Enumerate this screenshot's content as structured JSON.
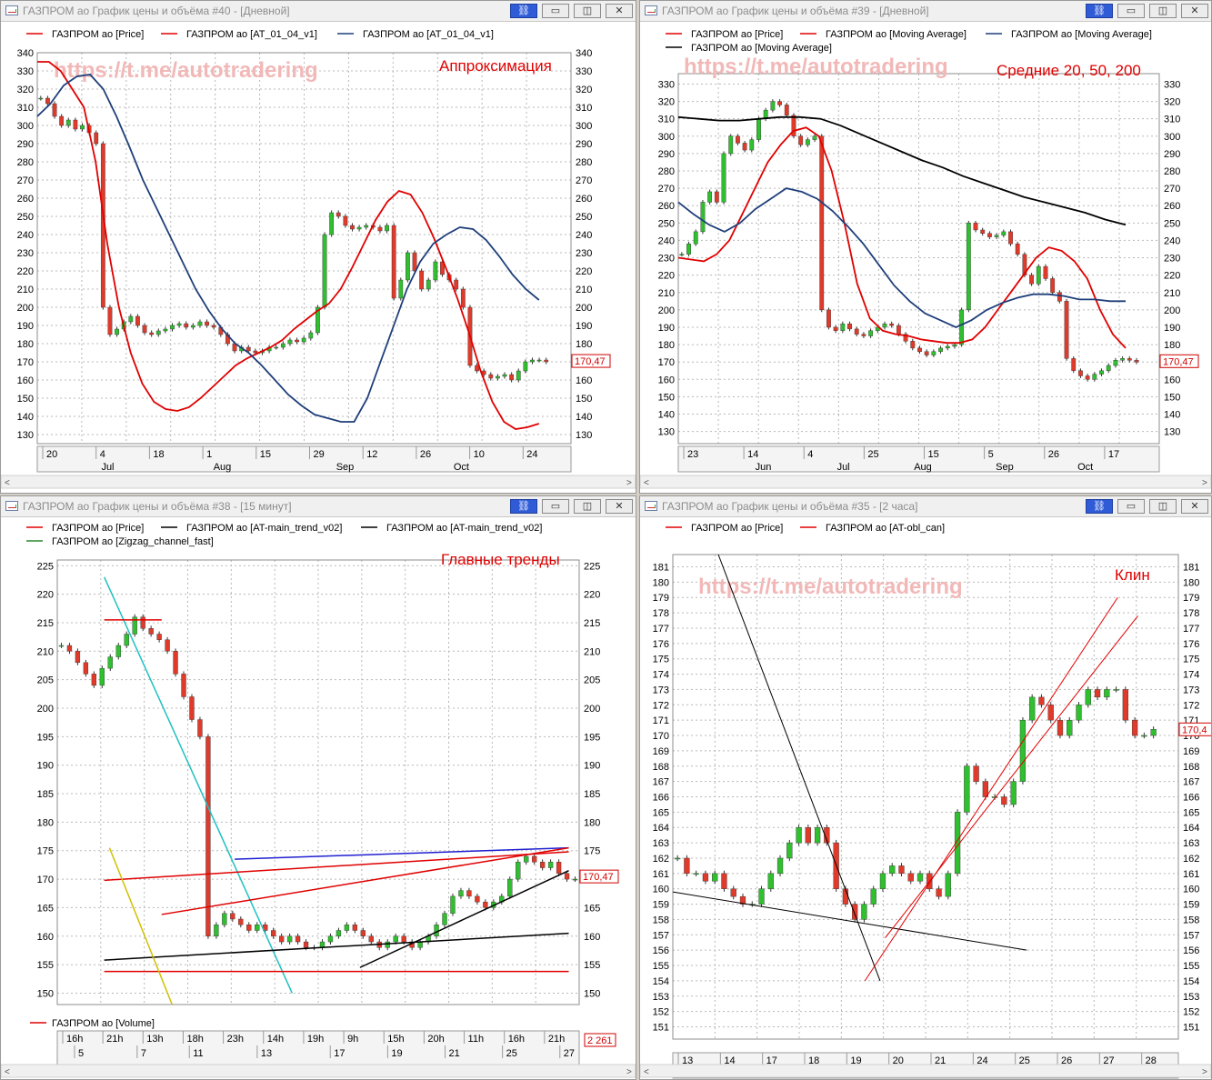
{
  "watermark": "https://t.me/autotradering",
  "charts": [
    {
      "id": "w40",
      "title": "ГАЗПРОМ ао График цены и объёма #40 - [Дневной]",
      "annotation": "Аппроксимация",
      "price_label": "170,47",
      "legend": [
        {
          "label": "ГАЗПРОМ ао [Price]",
          "color": "#e00000"
        },
        {
          "label": "ГАЗПРОМ ао [AT_01_04_v1]",
          "color": "#e00000"
        },
        {
          "label": "ГАЗПРОМ ао [AT_01_04_v1]",
          "color": "#1f3f7a"
        }
      ],
      "x_labels": [
        "20",
        "4",
        "18",
        "1",
        "15",
        "29",
        "12",
        "26",
        "10",
        "24"
      ],
      "month_labels": [
        "Jul",
        "Aug",
        "Sep",
        "Oct"
      ],
      "chart_data": {
        "type": "line",
        "ylim": [
          125,
          340
        ],
        "y_ticks": [
          130,
          140,
          150,
          160,
          170,
          180,
          190,
          200,
          210,
          220,
          230,
          240,
          250,
          260,
          270,
          280,
          290,
          300,
          310,
          320,
          330,
          340
        ],
        "x_count": 100,
        "series": [
          {
            "name": "ГАЗПРОМ ао [Price]",
            "kind": "candles",
            "color": "#e00000",
            "values": [
              315,
              312,
              305,
              300,
              303,
              298,
              300,
              296,
              290,
              200,
              185,
              188,
              192,
              195,
              190,
              186,
              185,
              187,
              188,
              190,
              191,
              189,
              190,
              192,
              190,
              189,
              185,
              180,
              176,
              178,
              176,
              175,
              176,
              178,
              178,
              180,
              182,
              181,
              183,
              186,
              200,
              240,
              252,
              250,
              245,
              243,
              244,
              245,
              244,
              242,
              245,
              205,
              215,
              230,
              220,
              210,
              215,
              225,
              218,
              215,
              210,
              200,
              168,
              165,
              163,
              161,
              162,
              163,
              160,
              165,
              170,
              171,
              171,
              170
            ]
          },
          {
            "name": "ГАЗПРОМ ао [AT_01_04_v1]",
            "kind": "line",
            "color": "#e00000",
            "values": [
              335,
              335,
              330,
              320,
              310,
              280,
              235,
              200,
              175,
              158,
              148,
              144,
              143,
              145,
              150,
              156,
              162,
              168,
              172,
              175,
              178,
              182,
              188,
              193,
              198,
              202,
              210,
              222,
              235,
              248,
              258,
              264,
              262,
              252,
              238,
              222,
              205,
              186,
              165,
              148,
              137,
              133,
              134,
              136
            ]
          },
          {
            "name": "ГАЗПРОМ ао [AT_01_04_v1]",
            "kind": "line",
            "color": "#1f3f7a",
            "values": [
              305,
              312,
              322,
              327,
              328,
              320,
              305,
              288,
              270,
              255,
              240,
              225,
              210,
              198,
              188,
              180,
              175,
              168,
              160,
              152,
              146,
              141,
              139,
              137,
              137,
              150,
              170,
              190,
              210,
              225,
              235,
              240,
              244,
              243,
              237,
              228,
              218,
              210,
              204
            ]
          }
        ]
      }
    },
    {
      "id": "w39",
      "title": "ГАЗПРОМ ао График цены и объёма #39 - [Дневной]",
      "annotation": "Средние 20, 50, 200",
      "price_label": "170,47",
      "legend": [
        {
          "label": "ГАЗПРОМ ао [Price]",
          "color": "#e00000"
        },
        {
          "label": "ГАЗПРОМ ао [Moving Average]",
          "color": "#e00000"
        },
        {
          "label": "ГАЗПРОМ ао [Moving Average]",
          "color": "#1f3f7a"
        },
        {
          "label": "ГАЗПРОМ ао [Moving Average]",
          "color": "#000000"
        }
      ],
      "x_labels": [
        "23",
        "14",
        "4",
        "25",
        "15",
        "5",
        "26",
        "17"
      ],
      "month_labels": [
        "Jun",
        "Jul",
        "Aug",
        "Sep",
        "Oct"
      ],
      "chart_data": {
        "type": "line",
        "ylim": [
          123,
          336
        ],
        "y_ticks": [
          130,
          140,
          150,
          160,
          170,
          180,
          190,
          200,
          210,
          220,
          230,
          240,
          250,
          260,
          270,
          280,
          290,
          300,
          310,
          320,
          330
        ],
        "x_count": 100,
        "series": [
          {
            "name": "ГАЗПРОМ ао [Price]",
            "kind": "candles",
            "color": "#e00000",
            "values": [
              232,
              238,
              245,
              262,
              268,
              262,
              290,
              300,
              296,
              292,
              298,
              310,
              315,
              320,
              318,
              312,
              300,
              295,
              298,
              300,
              200,
              190,
              188,
              192,
              189,
              186,
              185,
              188,
              190,
              192,
              191,
              186,
              182,
              178,
              176,
              174,
              176,
              178,
              179,
              180,
              200,
              250,
              246,
              244,
              242,
              243,
              245,
              238,
              232,
              220,
              215,
              225,
              218,
              210,
              205,
              172,
              165,
              162,
              160,
              163,
              165,
              168,
              171,
              172,
              171,
              170
            ]
          },
          {
            "name": "ГАЗПРОМ ао [Moving Average]",
            "kind": "line",
            "color": "#e00000",
            "values": [
              230,
              229,
              228,
              232,
              240,
              255,
              270,
              285,
              295,
              303,
              305,
              300,
              280,
              250,
              215,
              195,
              188,
              186,
              185,
              183,
              182,
              181,
              181,
              183,
              190,
              200,
              210,
              220,
              230,
              236,
              234,
              228,
              218,
              200,
              186,
              178
            ]
          },
          {
            "name": "ГАЗПРОМ ао [Moving Average]",
            "kind": "line",
            "color": "#1f3f7a",
            "values": [
              262,
              255,
              249,
              245,
              250,
              258,
              264,
              270,
              268,
              264,
              257,
              248,
              238,
              226,
              214,
              205,
              198,
              194,
              190,
              194,
              200,
              204,
              207,
              209,
              209,
              208,
              206,
              206,
              205,
              205
            ]
          },
          {
            "name": "ГАЗПРОМ ао [Moving Average]",
            "kind": "line",
            "color": "#000000",
            "values": [
              311,
              310,
              309,
              309,
              310,
              311,
              311,
              310,
              306,
              301,
              296,
              291,
              286,
              282,
              277,
              273,
              269,
              265,
              262,
              259,
              256,
              252,
              249
            ]
          }
        ]
      }
    },
    {
      "id": "w38",
      "title": "ГАЗПРОМ ао График цены и объёма #38 - [15 минут]",
      "annotation": "Главные тренды",
      "price_label": "170,47",
      "volume_label": "2 261",
      "volume_legend": "ГАЗПРОМ ао [Volume]",
      "legend": [
        {
          "label": "ГАЗПРОМ ао [Price]",
          "color": "#e00000"
        },
        {
          "label": "ГАЗПРОМ ао [AT-main_trend_v02]",
          "color": "#000000"
        },
        {
          "label": "ГАЗПРОМ ао [AT-main_trend_v02]",
          "color": "#000000"
        },
        {
          "label": "ГАЗПРОМ ао [Zigzag_channel_fast]",
          "color": "#2a8a2a"
        }
      ],
      "x_labels": [
        "16h",
        "21h",
        "13h",
        "18h",
        "23h",
        "14h",
        "19h",
        "9h",
        "15h",
        "20h",
        "11h",
        "16h",
        "21h"
      ],
      "day_labels": [
        "5",
        "7",
        "11",
        "13",
        "17",
        "19",
        "21",
        "25",
        "27"
      ],
      "chart_data": {
        "type": "line",
        "ylim": [
          148,
          226
        ],
        "y_ticks": [
          150,
          155,
          160,
          165,
          170,
          175,
          180,
          185,
          190,
          195,
          200,
          205,
          210,
          215,
          220,
          225
        ],
        "x_count": 100,
        "series": [
          {
            "name": "ГАЗПРОМ ао [Price]",
            "kind": "candles",
            "color": "#e00000",
            "values": [
              211,
              210,
              208,
              206,
              204,
              207,
              209,
              211,
              213,
              216,
              214,
              213,
              212,
              210,
              206,
              202,
              198,
              195,
              160,
              162,
              164,
              163,
              162,
              161,
              162,
              161,
              160,
              159,
              160,
              159,
              158,
              158,
              159,
              160,
              161,
              162,
              161,
              160,
              159,
              158,
              159,
              160,
              159,
              158,
              159,
              160,
              162,
              164,
              167,
              168,
              167,
              166,
              165,
              166,
              167,
              170,
              173,
              174,
              173,
              172,
              173,
              171,
              170,
              170
            ]
          },
          {
            "name": "ГАЗПРОМ ао [AT-main_trend_v02]",
            "kind": "trendlines",
            "color": "#000000",
            "values": []
          },
          {
            "name": "ГАЗПРОМ ао [Zigzag_channel_fast]",
            "kind": "trendlines",
            "color": "#2a8a2a",
            "values": []
          }
        ]
      }
    },
    {
      "id": "w35",
      "title": "ГАЗПРОМ ао График цены и объёма #35 - [2 часа]",
      "annotation": "Клин",
      "price_label": "170,4",
      "legend": [
        {
          "label": "ГАЗПРОМ ао [Price]",
          "color": "#e00000"
        },
        {
          "label": "ГАЗПРОМ ао [AT-obl_can]",
          "color": "#e00000"
        }
      ],
      "x_labels": [
        "13",
        "14",
        "17",
        "18",
        "19",
        "20",
        "21",
        "24",
        "25",
        "26",
        "27",
        "28"
      ],
      "chart_data": {
        "type": "line",
        "ylim": [
          150.2,
          181.8
        ],
        "y_ticks": [
          151,
          152,
          153,
          154,
          155,
          156,
          157,
          158,
          159,
          160,
          161,
          162,
          163,
          164,
          165,
          166,
          167,
          168,
          169,
          170,
          171,
          172,
          173,
          174,
          175,
          176,
          177,
          178,
          179,
          180,
          181
        ],
        "x_count": 100,
        "series": [
          {
            "name": "ГАЗПРОМ ао [Price]",
            "kind": "candles",
            "color": "#e00000",
            "values": [
              162,
              161,
              161,
              160.5,
              161,
              160,
              159.5,
              159,
              159,
              160,
              161,
              162,
              163,
              164,
              163,
              164,
              163,
              160,
              159,
              158,
              159,
              160,
              161,
              161.5,
              161,
              160.5,
              161,
              160,
              159.5,
              161,
              165,
              168,
              167,
              166,
              166,
              165.5,
              167,
              171,
              172.5,
              172,
              171,
              170,
              171,
              172,
              173,
              172.5,
              173,
              173,
              171,
              170,
              170,
              170.4
            ]
          },
          {
            "name": "ГАЗПРОМ ао [AT-obl_can]",
            "kind": "channel",
            "color": "#e00000",
            "values": []
          }
        ]
      }
    }
  ]
}
